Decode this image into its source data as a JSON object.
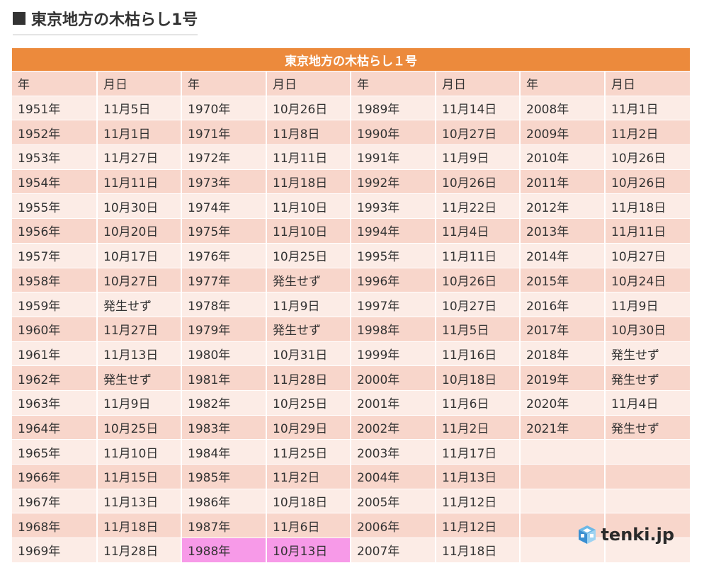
{
  "page": {
    "heading": "東京地方の木枯らし1号"
  },
  "table": {
    "title": "東京地方の木枯らし１号",
    "headers": [
      "年",
      "月日",
      "年",
      "月日",
      "年",
      "月日",
      "年",
      "月日"
    ],
    "rows": [
      [
        "1951年",
        "11月5日",
        "1970年",
        "10月26日",
        "1989年",
        "11月14日",
        "2008年",
        "11月1日"
      ],
      [
        "1952年",
        "11月1日",
        "1971年",
        "11月8日",
        "1990年",
        "10月27日",
        "2009年",
        "11月2日"
      ],
      [
        "1953年",
        "11月27日",
        "1972年",
        "11月11日",
        "1991年",
        "11月9日",
        "2010年",
        "10月26日"
      ],
      [
        "1954年",
        "11月11日",
        "1973年",
        "11月18日",
        "1992年",
        "10月26日",
        "2011年",
        "10月26日"
      ],
      [
        "1955年",
        "10月30日",
        "1974年",
        "11月10日",
        "1993年",
        "11月22日",
        "2012年",
        "11月18日"
      ],
      [
        "1956年",
        "10月20日",
        "1975年",
        "11月10日",
        "1994年",
        "11月4日",
        "2013年",
        "11月11日"
      ],
      [
        "1957年",
        "10月17日",
        "1976年",
        "10月25日",
        "1995年",
        "11月11日",
        "2014年",
        "10月27日"
      ],
      [
        "1958年",
        "10月27日",
        "1977年",
        "発生せず",
        "1996年",
        "10月26日",
        "2015年",
        "10月24日"
      ],
      [
        "1959年",
        "発生せず",
        "1978年",
        "11月9日",
        "1997年",
        "10月27日",
        "2016年",
        "11月9日"
      ],
      [
        "1960年",
        "11月27日",
        "1979年",
        "発生せず",
        "1998年",
        "11月5日",
        "2017年",
        "10月30日"
      ],
      [
        "1961年",
        "11月13日",
        "1980年",
        "10月31日",
        "1999年",
        "11月16日",
        "2018年",
        "発生せず"
      ],
      [
        "1962年",
        "発生せず",
        "1981年",
        "11月28日",
        "2000年",
        "10月18日",
        "2019年",
        "発生せず"
      ],
      [
        "1963年",
        "11月9日",
        "1982年",
        "10月25日",
        "2001年",
        "11月6日",
        "2020年",
        "11月4日"
      ],
      [
        "1964年",
        "10月25日",
        "1983年",
        "10月29日",
        "2002年",
        "11月2日",
        "2021年",
        "発生せず"
      ],
      [
        "1965年",
        "11月10日",
        "1984年",
        "11月25日",
        "2003年",
        "11月17日",
        "",
        ""
      ],
      [
        "1966年",
        "11月15日",
        "1985年",
        "11月2日",
        "2004年",
        "11月13日",
        "",
        ""
      ],
      [
        "1967年",
        "11月13日",
        "1986年",
        "10月18日",
        "2005年",
        "11月12日",
        "",
        ""
      ],
      [
        "1968年",
        "11月18日",
        "1987年",
        "11月6日",
        "2006年",
        "11月12日",
        "",
        ""
      ],
      [
        "1969年",
        "11月28日",
        "1988年",
        "10月13日",
        "2007年",
        "11月18日",
        "",
        ""
      ]
    ],
    "highlight": {
      "row": 18,
      "cols": [
        2,
        3
      ],
      "color": "#f79ae8"
    }
  },
  "logo": {
    "text": "tenki.jp",
    "icon": "cube-logo-icon"
  },
  "colors": {
    "title_bar": "#ec8a3c",
    "row_dark": "#f8d6cb",
    "row_light": "#fcece6"
  }
}
